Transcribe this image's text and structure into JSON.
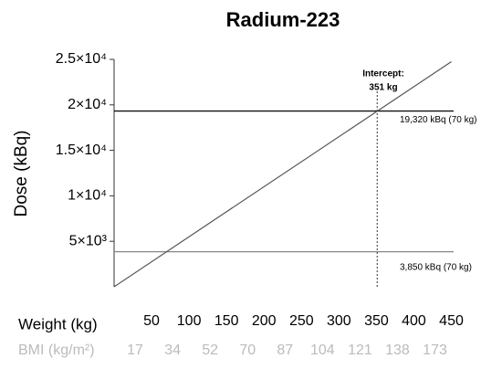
{
  "chart_data": {
    "type": "line",
    "title": "Radium-223",
    "y_label": "Dose (kBq)",
    "x_label": "Weight (kg)",
    "secondary_x_label": "BMI (kg/m²)",
    "secondary_x_categories": [
      "17",
      "34",
      "52",
      "70",
      "87",
      "104",
      "121",
      "138",
      "173"
    ],
    "xlim": [
      0,
      453
    ],
    "xticks": [
      50,
      100,
      150,
      200,
      250,
      300,
      350,
      400,
      450
    ],
    "ylim": [
      0,
      25000
    ],
    "yticks": [
      {
        "value": 5000,
        "label": "5×10³"
      },
      {
        "value": 10000,
        "label": "1×10⁴"
      },
      {
        "value": 15000,
        "label": "1.5×10⁴"
      },
      {
        "value": 20000,
        "label": "2×10⁴"
      },
      {
        "value": 25000,
        "label": "2.5×10⁴"
      }
    ],
    "series": [
      {
        "color": "#555555",
        "x": [
          0,
          450
        ],
        "values": [
          0,
          24750
        ]
      }
    ],
    "reference_lines": [
      {
        "value": 19320,
        "label": "19,320 kBq (70 kg)",
        "color": "#111111"
      },
      {
        "value": 3850,
        "label": "3,850 kBq (70 kg)",
        "color": "#888888"
      }
    ],
    "intercept": {
      "x": 351,
      "label": "Intercept:",
      "value_label": "351 kg"
    }
  }
}
